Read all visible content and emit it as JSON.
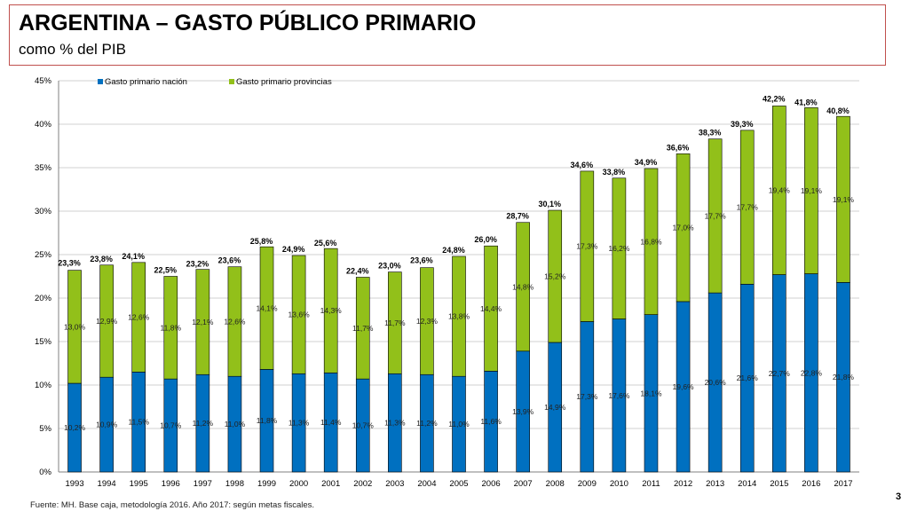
{
  "header": {
    "title": "ARGENTINA – GASTO PÚBLICO PRIMARIO",
    "subtitle": "como % del PIB"
  },
  "footer": {
    "source": "Fuente: MH. Base caja, metodología 2016. Año 2017: según metas fiscales.",
    "page_number": "3"
  },
  "colors": {
    "nacion": "#0070c0",
    "provincias": "#92c01a",
    "frame": "#c0504d",
    "grid": "#d0d0d0"
  },
  "chart_data": {
    "type": "bar",
    "stacked": true,
    "title": "",
    "xlabel": "",
    "ylabel": "",
    "ylim": [
      0,
      45
    ],
    "ytick_labels": [
      "0%",
      "5%",
      "10%",
      "15%",
      "20%",
      "25%",
      "30%",
      "35%",
      "40%",
      "45%"
    ],
    "grid": true,
    "legend_position": "top-left",
    "categories": [
      "1993",
      "1994",
      "1995",
      "1996",
      "1997",
      "1998",
      "1999",
      "2000",
      "2001",
      "2002",
      "2003",
      "2004",
      "2005",
      "2006",
      "2007",
      "2008",
      "2009",
      "2010",
      "2011",
      "2012",
      "2013",
      "2014",
      "2015",
      "2016",
      "2017"
    ],
    "series": [
      {
        "name": "Gasto primario nación",
        "color": "#0070c0",
        "values": [
          10.2,
          10.9,
          11.5,
          10.7,
          11.2,
          11.0,
          11.8,
          11.3,
          11.4,
          10.7,
          11.3,
          11.2,
          11.0,
          11.6,
          13.9,
          14.9,
          17.3,
          17.6,
          18.1,
          19.6,
          20.6,
          21.6,
          22.7,
          22.8,
          21.8
        ],
        "labels": [
          "10,2%",
          "10,9%",
          "11,5%",
          "10,7%",
          "11,2%",
          "11,0%",
          "11,8%",
          "11,3%",
          "11,4%",
          "10,7%",
          "11,3%",
          "11,2%",
          "11,0%",
          "11,6%",
          "13,9%",
          "14,9%",
          "17,3%",
          "17,6%",
          "18,1%",
          "19,6%",
          "20,6%",
          "21,6%",
          "22,7%",
          "22,8%",
          "21,8%"
        ]
      },
      {
        "name": "Gasto primario provincias",
        "color": "#92c01a",
        "values": [
          13.0,
          12.9,
          12.6,
          11.8,
          12.1,
          12.6,
          14.1,
          13.6,
          14.3,
          11.7,
          11.7,
          12.3,
          13.8,
          14.4,
          14.8,
          15.2,
          17.3,
          16.2,
          16.8,
          17.0,
          17.7,
          17.7,
          19.4,
          19.1,
          19.1
        ],
        "labels": [
          "13,0%",
          "12,9%",
          "12,6%",
          "11,8%",
          "12,1%",
          "12,6%",
          "14,1%",
          "13,6%",
          "14,3%",
          "11,7%",
          "11,7%",
          "12,3%",
          "13,8%",
          "14,4%",
          "14,8%",
          "15,2%",
          "17,3%",
          "16,2%",
          "16,8%",
          "17,0%",
          "17,7%",
          "17,7%",
          "19,4%",
          "19,1%",
          "19,1%"
        ]
      }
    ],
    "totals": [
      23.3,
      23.8,
      24.1,
      22.5,
      23.2,
      23.6,
      25.8,
      24.9,
      25.6,
      22.4,
      23.0,
      23.6,
      24.8,
      26.0,
      28.7,
      30.1,
      34.6,
      33.8,
      34.9,
      36.6,
      38.3,
      39.3,
      42.2,
      41.8,
      40.8
    ],
    "total_labels": [
      "23,3%",
      "23,8%",
      "24,1%",
      "22,5%",
      "23,2%",
      "23,6%",
      "25,8%",
      "24,9%",
      "25,6%",
      "22,4%",
      "23,0%",
      "23,6%",
      "24,8%",
      "26,0%",
      "28,7%",
      "30,1%",
      "34,6%",
      "33,8%",
      "34,9%",
      "36,6%",
      "38,3%",
      "39,3%",
      "42,2%",
      "41,8%",
      "40,8%"
    ]
  }
}
